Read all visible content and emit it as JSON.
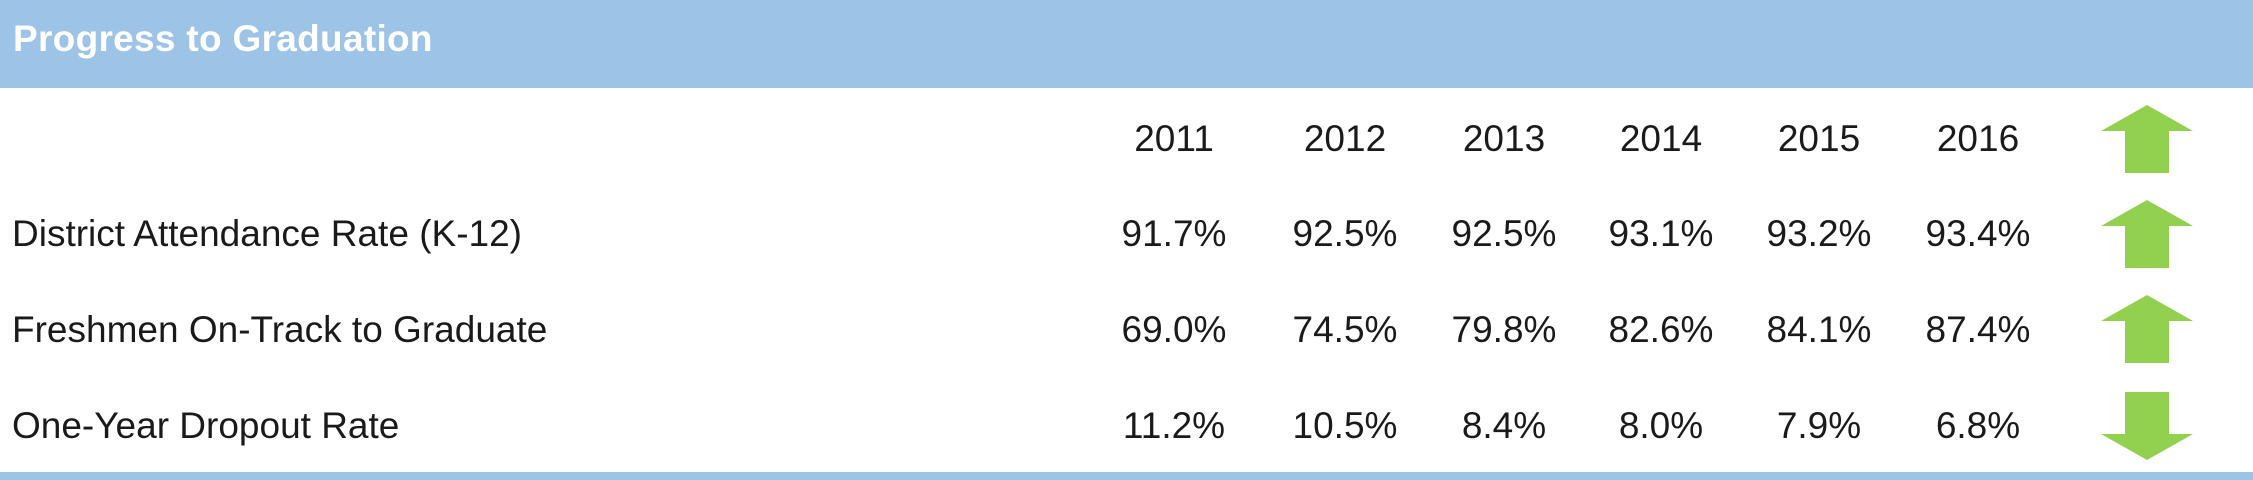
{
  "header": {
    "title": "Progress to Graduation"
  },
  "colors": {
    "header_bg": "#9dc3e6",
    "arrow_green": "#92d050"
  },
  "columns": [
    "2011",
    "2012",
    "2013",
    "2014",
    "2015",
    "2016"
  ],
  "rows": [
    {
      "label": "District Attendance Rate (K-12)",
      "values": [
        "91.7%",
        "92.5%",
        "92.5%",
        "93.1%",
        "93.2%",
        "93.4%"
      ],
      "trend": "up-arrow-icon"
    },
    {
      "label": "Freshmen On-Track to Graduate",
      "values": [
        "69.0%",
        "74.5%",
        "79.8%",
        "82.6%",
        "84.1%",
        "87.4%"
      ],
      "trend": "up-arrow-icon"
    },
    {
      "label": "One-Year Dropout Rate",
      "values": [
        "11.2%",
        "10.5%",
        "8.4%",
        "8.0%",
        "7.9%",
        "6.8%"
      ],
      "trend": "down-arrow-icon"
    }
  ],
  "header_row_icon": "up-arrow-icon"
}
